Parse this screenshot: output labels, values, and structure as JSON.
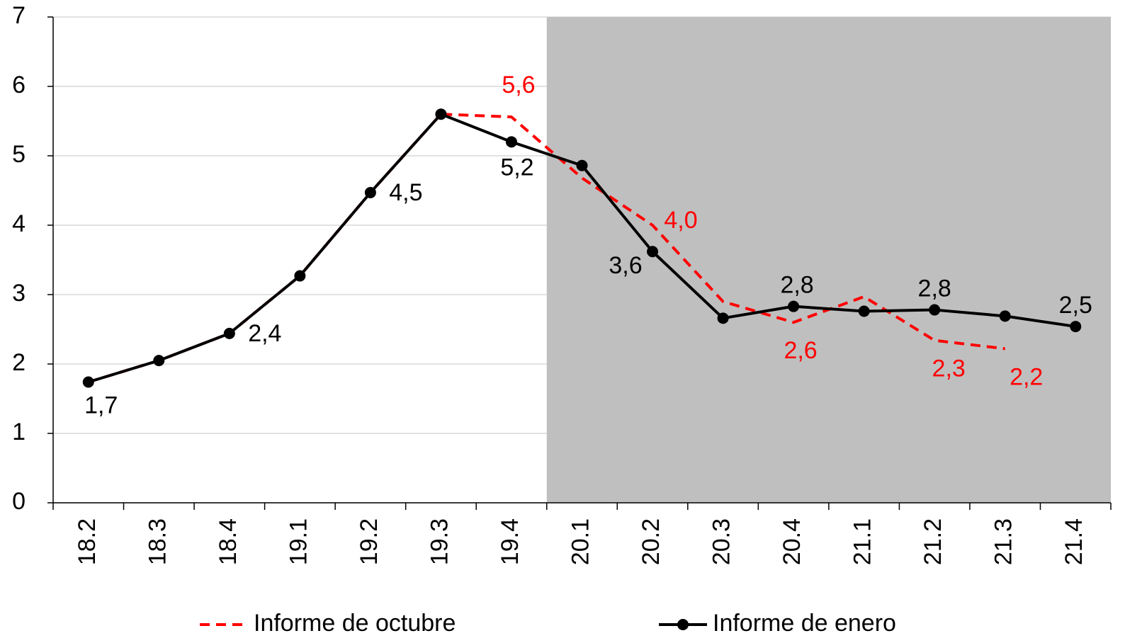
{
  "chart_data": {
    "type": "line",
    "categories": [
      "18.2",
      "18.3",
      "18.4",
      "19.1",
      "19.2",
      "19.3",
      "19.4",
      "20.1",
      "20.2",
      "20.3",
      "20.4",
      "21.1",
      "21.2",
      "21.3",
      "21.4"
    ],
    "series": [
      {
        "name": "Informe de octubre",
        "color": "#ff0000",
        "dashed": true,
        "values": [
          1.74,
          2.05,
          2.44,
          3.27,
          4.47,
          5.6,
          5.56,
          4.68,
          4.0,
          2.9,
          2.6,
          2.97,
          2.34,
          2.22,
          null
        ],
        "value_labels": [
          null,
          null,
          null,
          null,
          null,
          null,
          "5,6",
          null,
          "4,0",
          null,
          "2,6",
          null,
          "2,3",
          "2,2",
          null
        ]
      },
      {
        "name": "Informe de enero",
        "color": "#000000",
        "markers": true,
        "values": [
          1.74,
          2.05,
          2.44,
          3.27,
          4.47,
          5.6,
          5.2,
          4.86,
          3.62,
          2.66,
          2.83,
          2.76,
          2.78,
          2.69,
          2.54
        ],
        "value_labels": [
          "1,7",
          null,
          "2,4",
          null,
          "4,5",
          null,
          "5,2",
          null,
          "3,6",
          null,
          "2,8",
          null,
          "2,8",
          null,
          "2,5"
        ]
      }
    ],
    "ylim": [
      0,
      7
    ],
    "yticks": [
      0,
      1,
      2,
      3,
      4,
      5,
      6,
      7
    ],
    "grid": true,
    "shaded_from": "20.1",
    "shade_color": "#bfbfbf",
    "legend": "bottom"
  }
}
